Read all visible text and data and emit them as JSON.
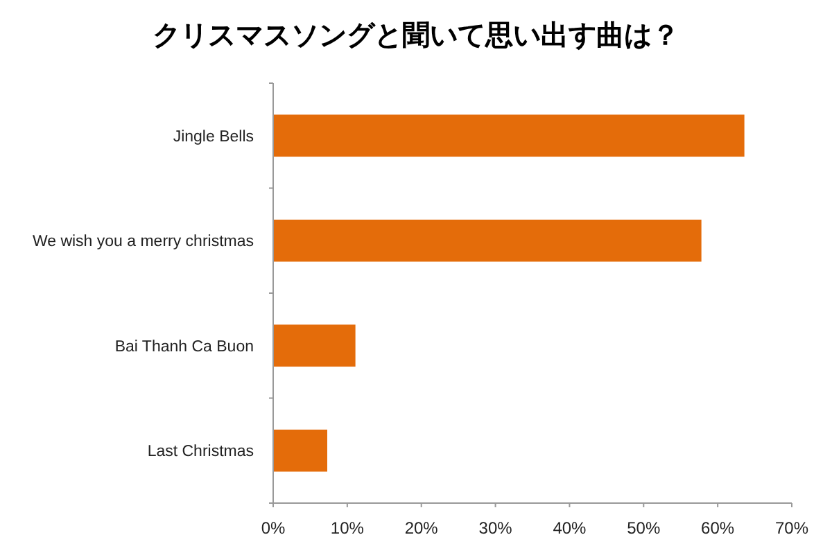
{
  "chart_data": {
    "type": "bar",
    "orientation": "horizontal",
    "title": "クリスマスソングと聞いて思い出す曲は？",
    "categories": [
      "Jingle Bells",
      "We wish you a merry christmas",
      "Bai Thanh Ca Buon",
      "Last Christmas"
    ],
    "values": [
      63.6,
      57.8,
      11.1,
      7.3
    ],
    "color": "#e46c0a",
    "xlim": [
      0,
      70
    ],
    "xticks": [
      {
        "value": 0,
        "label": "0%"
      },
      {
        "value": 10,
        "label": "10%"
      },
      {
        "value": 20,
        "label": "20%"
      },
      {
        "value": 30,
        "label": "30%"
      },
      {
        "value": 40,
        "label": "40%"
      },
      {
        "value": 50,
        "label": "50%"
      },
      {
        "value": 60,
        "label": "60%"
      },
      {
        "value": 70,
        "label": "70%"
      }
    ],
    "grid": false
  }
}
